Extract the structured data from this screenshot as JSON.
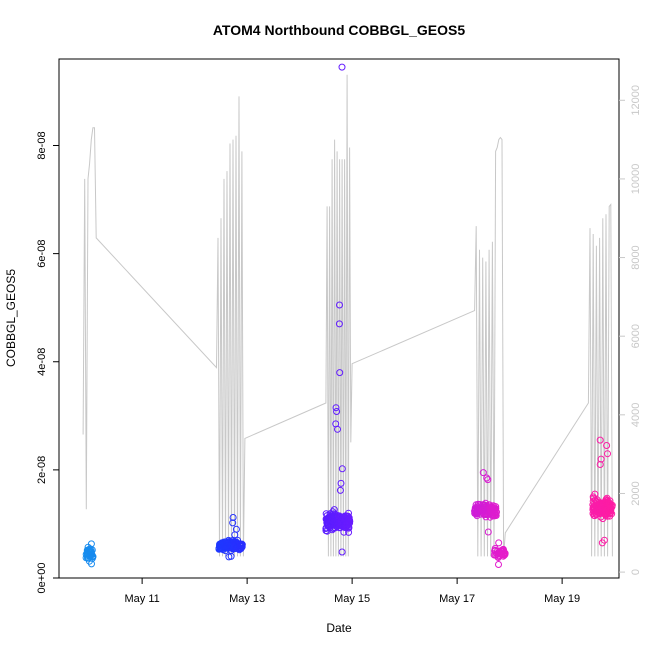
{
  "chart_data": {
    "type": "scatter",
    "title": "ATOM4 Northbound COBBGL_GEOS5",
    "xlabel": "Date",
    "ylabel": "COBBGL_GEOS5",
    "xlim": [
      "2016-05-09T10:00",
      "2016-05-20T02:00"
    ],
    "ylim": [
      0,
      9.6e-08
    ],
    "y2lim": [
      -150,
      13050
    ],
    "x_ticks": [
      {
        "label": "May 11",
        "date": "2016-05-11"
      },
      {
        "label": "May 13",
        "date": "2016-05-13"
      },
      {
        "label": "May 15",
        "date": "2016-05-15"
      },
      {
        "label": "May 17",
        "date": "2016-05-17"
      },
      {
        "label": "May 19",
        "date": "2016-05-19"
      }
    ],
    "y_ticks": [
      {
        "label": "0e+00",
        "value": 0
      },
      {
        "label": "2e-08",
        "value": 2e-08
      },
      {
        "label": "4e-08",
        "value": 4e-08
      },
      {
        "label": "6e-08",
        "value": 6e-08
      },
      {
        "label": "8e-08",
        "value": 8e-08
      }
    ],
    "y2_ticks": [
      {
        "label": "0",
        "value": 0
      },
      {
        "label": "2000",
        "value": 2000
      },
      {
        "label": "4000",
        "value": 4000
      },
      {
        "label": "6000",
        "value": 6000
      },
      {
        "label": "8000",
        "value": 8000
      },
      {
        "label": "10000",
        "value": 10000
      },
      {
        "label": "12000",
        "value": 12000
      }
    ],
    "grid": false,
    "legend": "none",
    "colors": {
      "point_gradient": [
        "#1ca3e8",
        "#0a4dff",
        "#3a1cff",
        "#8a1cff",
        "#e81cc8",
        "#ff1ca0"
      ],
      "altitude_line": "#c8c8c8"
    },
    "series": [
      {
        "role": "points",
        "marker": "open-circle",
        "clusters": [
          {
            "start": "2016-05-09T22:00",
            "end": "2016-05-10T02:00",
            "center": 4.5e-09,
            "spread": 1.8e-09,
            "n": 34,
            "outliers": [
              2.6e-09,
              3.1e-09,
              5.2e-09,
              6.3e-09
            ]
          },
          {
            "start": "2016-05-12T11:00",
            "end": "2016-05-12T22:00",
            "center": 6e-09,
            "spread": 1.4e-09,
            "n": 150,
            "outliers": [
              1.12e-08,
              1.02e-08,
              9e-09,
              8e-09,
              4e-09,
              3.9e-09
            ]
          },
          {
            "start": "2016-05-14T12:00",
            "end": "2016-05-14T23:00",
            "center": 1.05e-08,
            "spread": 2.8e-09,
            "n": 180,
            "outliers": [
              9.45e-08,
              5.05e-08,
              4.7e-08,
              3.8e-08,
              3.15e-08,
              3.08e-08,
              2.85e-08,
              2.75e-08,
              2.02e-08,
              1.75e-08,
              1.62e-08,
              4.8e-09
            ]
          },
          {
            "start": "2016-05-17T08:00",
            "end": "2016-05-17T18:00",
            "center": 1.25e-08,
            "spread": 2e-09,
            "n": 110,
            "outliers": [
              1.95e-08,
              1.85e-08,
              1.82e-08,
              8.5e-09
            ]
          },
          {
            "start": "2016-05-17T17:00",
            "end": "2016-05-17T22:00",
            "center": 4.5e-09,
            "spread": 1.3e-09,
            "n": 40,
            "outliers": [
              2.5e-09,
              6.5e-09
            ]
          },
          {
            "start": "2016-05-19T14:00",
            "end": "2016-05-19T23:00",
            "center": 1.3e-08,
            "spread": 3e-09,
            "n": 130,
            "outliers": [
              2.55e-08,
              2.45e-08,
              2.3e-08,
              2.2e-08,
              2.1e-08,
              6.5e-09,
              7e-09
            ]
          }
        ]
      },
      {
        "role": "altitude",
        "axis": "right",
        "style": "line",
        "flights": [
          {
            "start": "2016-05-09T21:00",
            "end": "2016-05-10T03:00",
            "peak": 11300,
            "samples": [
              3500,
              10000,
              1600,
              10000,
              10400,
              11000,
              11300,
              11300,
              8500
            ],
            "transit_to": {
              "time": "2016-05-12T10:00",
              "value": 5200
            }
          },
          {
            "start": "2016-05-12T10:00",
            "end": "2016-05-12T23:00",
            "peak": 12100,
            "samples": [
              5200,
              8500,
              400,
              9000,
              400,
              10000,
              400,
              10200,
              400,
              10900,
              400,
              11000,
              400,
              11100,
              400,
              12100,
              400,
              10700,
              400,
              3400
            ],
            "transit_to": {
              "time": "2016-05-14T12:00",
              "value": 4300
            }
          },
          {
            "start": "2016-05-14T12:00",
            "end": "2016-05-14T23:59",
            "peak": 12650,
            "samples": [
              4300,
              9300,
              400,
              9300,
              400,
              10500,
              400,
              11000,
              400,
              10700,
              400,
              10500,
              400,
              10500,
              400,
              10500,
              400,
              12650,
              400,
              10800,
              3300,
              5300
            ],
            "transit_to": {
              "time": "2016-05-17T08:00",
              "value": 6650
            }
          },
          {
            "start": "2016-05-17T08:00",
            "end": "2016-05-17T22:00",
            "peak": 11050,
            "samples": [
              6650,
              8800,
              400,
              8200,
              400,
              8000,
              400,
              7900,
              400,
              8200,
              400,
              8400,
              400,
              10700,
              10800,
              11000,
              11050,
              11000,
              400,
              1000
            ],
            "transit_to": {
              "time": "2016-05-19T12:00",
              "value": 4300
            }
          },
          {
            "start": "2016-05-19T12:00",
            "end": "2016-05-19T23:00",
            "peak": 9350,
            "samples": [
              4300,
              8750,
              400,
              8600,
              400,
              8300,
              400,
              8500,
              400,
              9000,
              400,
              9100,
              400,
              9300,
              9350,
              400
            ]
          }
        ]
      }
    ]
  }
}
